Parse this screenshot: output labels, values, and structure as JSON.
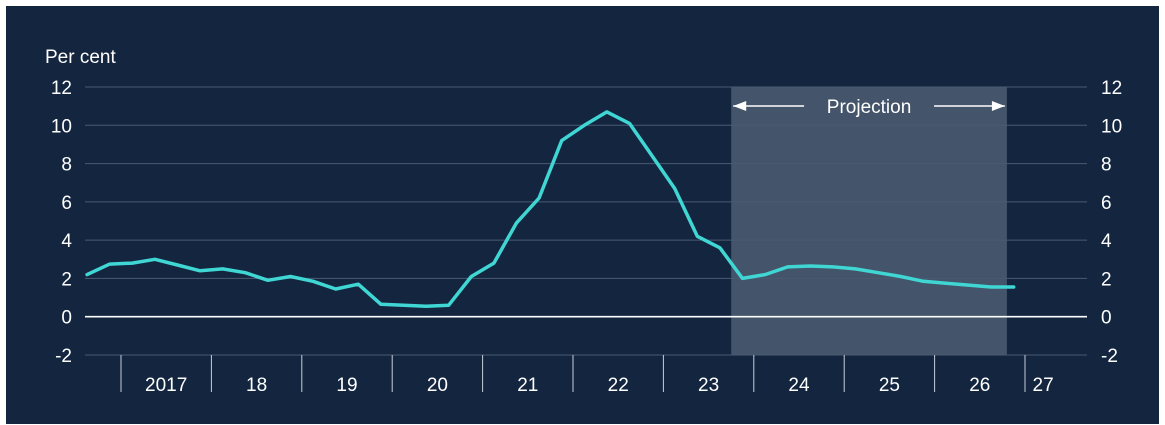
{
  "chart_data": {
    "type": "line",
    "y_unit_label": "Per cent",
    "ylim": [
      -2,
      12
    ],
    "y_ticks": [
      -2,
      0,
      2,
      4,
      6,
      8,
      10,
      12
    ],
    "y_ticks_text": [
      "-2",
      "0",
      "2",
      "4",
      "6",
      "8",
      "10",
      "12"
    ],
    "x_start": 2017.0,
    "x_end": 2027.4,
    "year_labels": [
      {
        "year": 2017,
        "label": "2017"
      },
      {
        "year": 2018,
        "label": "18"
      },
      {
        "year": 2019,
        "label": "19"
      },
      {
        "year": 2020,
        "label": "20"
      },
      {
        "year": 2021,
        "label": "21"
      },
      {
        "year": 2022,
        "label": "22"
      },
      {
        "year": 2023,
        "label": "23"
      },
      {
        "year": 2024,
        "label": "24"
      },
      {
        "year": 2025,
        "label": "25"
      },
      {
        "year": 2026,
        "label": "26"
      },
      {
        "year": 2027,
        "label": "27"
      }
    ],
    "projection": {
      "label": "Projection",
      "start": 2023.75,
      "end": 2026.8
    },
    "series": [
      {
        "color": "#3fd6d3",
        "points": [
          [
            2016.625,
            2.2
          ],
          [
            2016.875,
            2.75
          ],
          [
            2017.125,
            2.8
          ],
          [
            2017.375,
            3.0
          ],
          [
            2017.625,
            2.7
          ],
          [
            2017.875,
            2.4
          ],
          [
            2018.125,
            2.5
          ],
          [
            2018.375,
            2.3
          ],
          [
            2018.625,
            1.9
          ],
          [
            2018.875,
            2.1
          ],
          [
            2019.125,
            1.85
          ],
          [
            2019.375,
            1.45
          ],
          [
            2019.625,
            1.7
          ],
          [
            2019.875,
            0.65
          ],
          [
            2020.125,
            0.6
          ],
          [
            2020.375,
            0.55
          ],
          [
            2020.625,
            0.6
          ],
          [
            2020.875,
            2.1
          ],
          [
            2021.125,
            2.8
          ],
          [
            2021.375,
            4.9
          ],
          [
            2021.625,
            6.2
          ],
          [
            2021.875,
            9.2
          ],
          [
            2022.125,
            10.0
          ],
          [
            2022.375,
            10.7
          ],
          [
            2022.625,
            10.1
          ],
          [
            2022.875,
            8.4
          ],
          [
            2023.125,
            6.7
          ],
          [
            2023.375,
            4.2
          ],
          [
            2023.625,
            3.6
          ],
          [
            2023.875,
            2.0
          ],
          [
            2024.125,
            2.2
          ],
          [
            2024.375,
            2.6
          ],
          [
            2024.625,
            2.65
          ],
          [
            2024.875,
            2.6
          ],
          [
            2025.125,
            2.5
          ],
          [
            2025.375,
            2.3
          ],
          [
            2025.625,
            2.1
          ],
          [
            2025.875,
            1.85
          ],
          [
            2026.125,
            1.75
          ],
          [
            2026.375,
            1.65
          ],
          [
            2026.625,
            1.55
          ],
          [
            2026.875,
            1.55
          ]
        ]
      }
    ],
    "colors": {
      "background": "#13253f",
      "grid": "#4a5a72",
      "zero_line": "#ffffff",
      "projection_band": "#44546a",
      "text": "#ffffff"
    }
  }
}
